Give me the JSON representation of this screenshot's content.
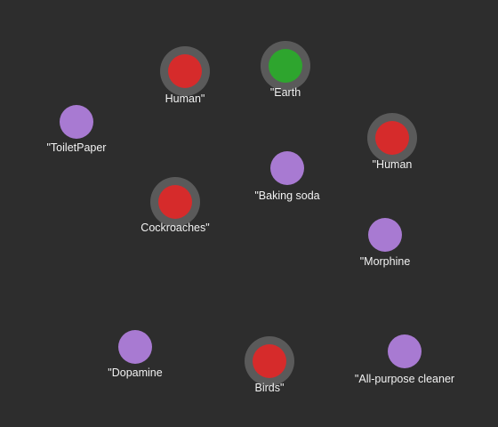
{
  "colors": {
    "background": "#2d2d2d",
    "ring": "#5a5a5a",
    "red": "#d62b2b",
    "green": "#2ea52e",
    "purple": "#a87ad2"
  },
  "nodes": [
    {
      "label": "Human\"",
      "color": "red",
      "ring": true
    },
    {
      "label": "\"Earth",
      "color": "green",
      "ring": true
    },
    {
      "label": "\"ToiletPaper",
      "color": "purple",
      "ring": false
    },
    {
      "label": "\"Human",
      "color": "red",
      "ring": true
    },
    {
      "label": "\"Baking soda",
      "color": "purple",
      "ring": false
    },
    {
      "label": "Cockroaches\"",
      "color": "red",
      "ring": true
    },
    {
      "label": "\"Morphine",
      "color": "purple",
      "ring": false
    },
    {
      "label": "\"Dopamine",
      "color": "purple",
      "ring": false
    },
    {
      "label": "Birds\"",
      "color": "red",
      "ring": true
    },
    {
      "label": "\"All-purpose cleaner",
      "color": "purple",
      "ring": false
    }
  ]
}
